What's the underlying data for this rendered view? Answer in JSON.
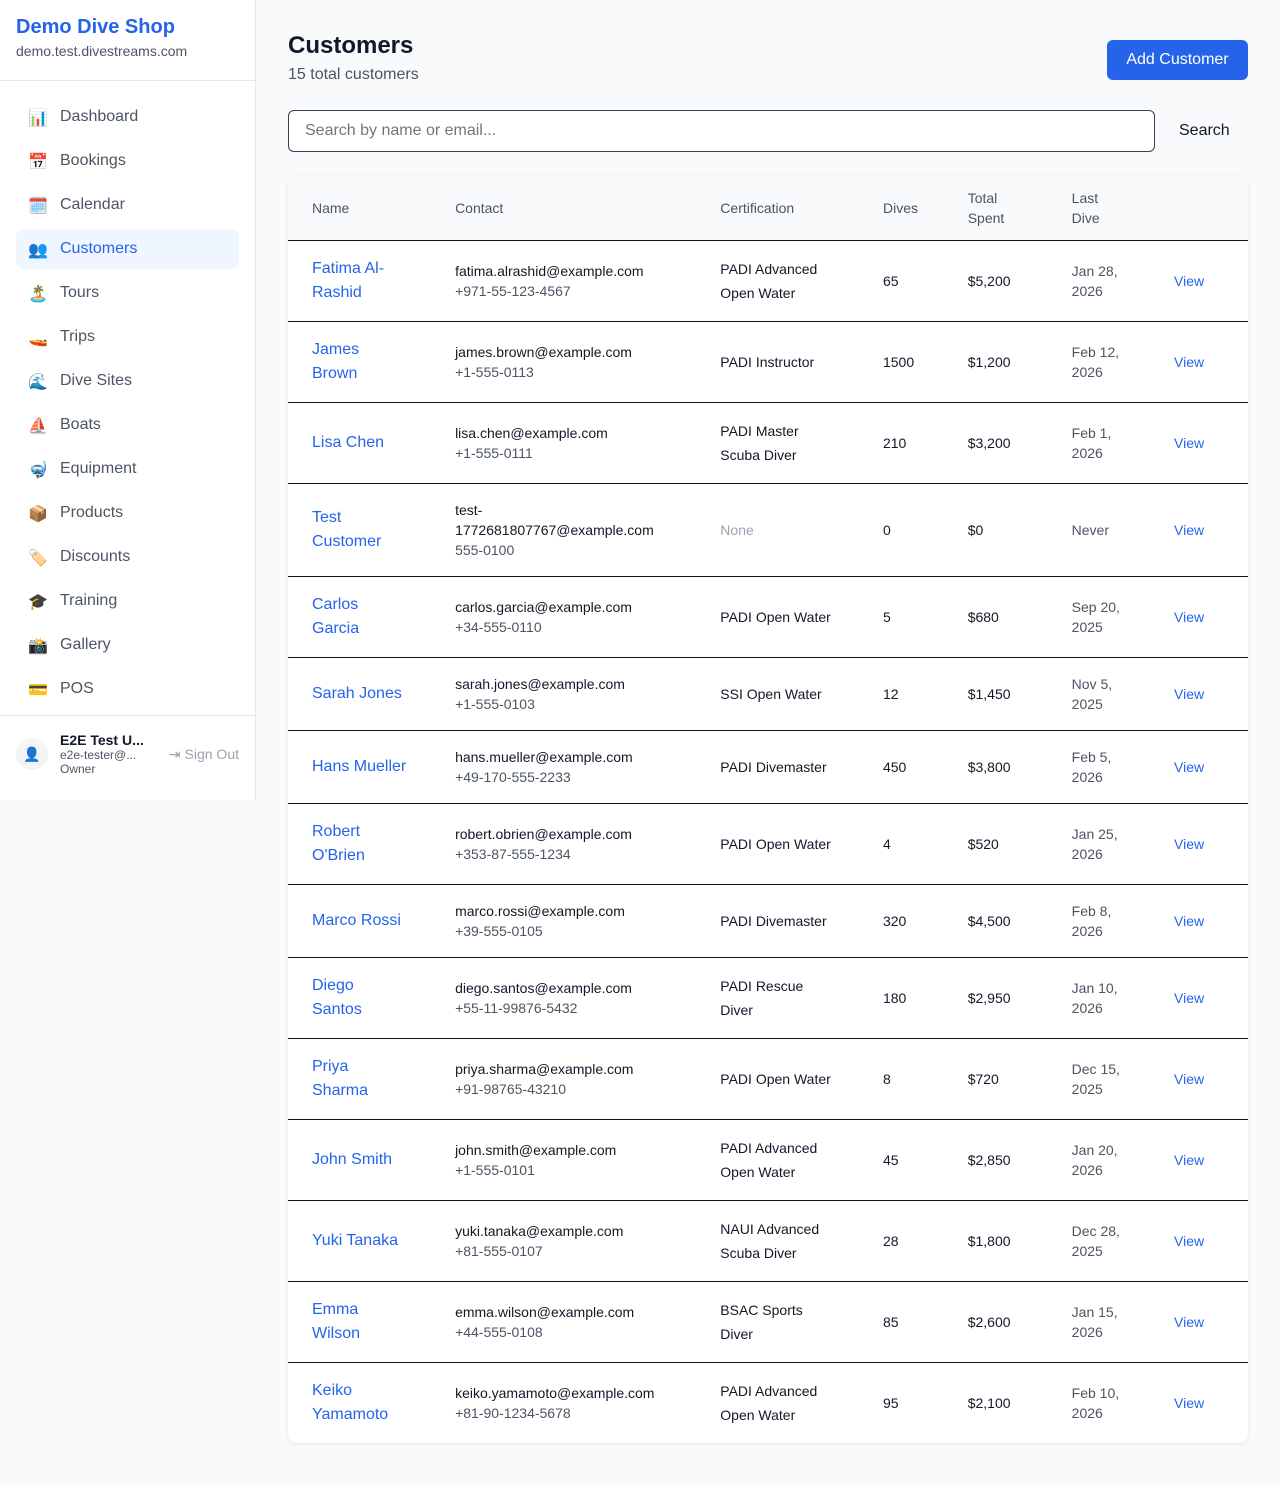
{
  "sidebar": {
    "brand": "Demo Dive Shop",
    "url": "demo.test.divestreams.com",
    "items": [
      {
        "label": "Dashboard",
        "icon": "📊"
      },
      {
        "label": "Bookings",
        "icon": "📅"
      },
      {
        "label": "Calendar",
        "icon": "🗓️"
      },
      {
        "label": "Customers",
        "icon": "👥",
        "active": true
      },
      {
        "label": "Tours",
        "icon": "🏝️"
      },
      {
        "label": "Trips",
        "icon": "🚤"
      },
      {
        "label": "Dive Sites",
        "icon": "🌊"
      },
      {
        "label": "Boats",
        "icon": "⛵"
      },
      {
        "label": "Equipment",
        "icon": "🤿"
      },
      {
        "label": "Products",
        "icon": "📦"
      },
      {
        "label": "Discounts",
        "icon": "🏷️"
      },
      {
        "label": "Training",
        "icon": "🎓"
      },
      {
        "label": "Gallery",
        "icon": "📸"
      },
      {
        "label": "POS",
        "icon": "💳"
      }
    ],
    "user": {
      "name": "E2E Test U...",
      "email": "e2e-tester@...",
      "role": "Owner",
      "sign_out": "Sign Out"
    }
  },
  "header": {
    "title": "Customers",
    "subtitle": "15 total customers",
    "add_label": "Add Customer"
  },
  "search": {
    "placeholder": "Search by name or email...",
    "button": "Search"
  },
  "table": {
    "headers": [
      "Name",
      "Contact",
      "Certification",
      "Dives",
      "Total Spent",
      "Last Dive",
      ""
    ],
    "view_label": "View",
    "rows": [
      [
        "Fatima Al-Rashid",
        "fatima.alrashid@example.com",
        "+971-55-123-4567",
        "PADI Advanced Open Water",
        "65",
        "$5,200",
        "Jan 28, 2026"
      ],
      [
        "James Brown",
        "james.brown@example.com",
        "+1-555-0113",
        "PADI Instructor",
        "1500",
        "$1,200",
        "Feb 12, 2026"
      ],
      [
        "Lisa Chen",
        "lisa.chen@example.com",
        "+1-555-0111",
        "PADI Master Scuba Diver",
        "210",
        "$3,200",
        "Feb 1, 2026"
      ],
      [
        "Test Customer",
        "test-1772681807767@example.com",
        "555-0100",
        "None",
        "0",
        "$0",
        "Never"
      ],
      [
        "Carlos Garcia",
        "carlos.garcia@example.com",
        "+34-555-0110",
        "PADI Open Water",
        "5",
        "$680",
        "Sep 20, 2025"
      ],
      [
        "Sarah Jones",
        "sarah.jones@example.com",
        "+1-555-0103",
        "SSI Open Water",
        "12",
        "$1,450",
        "Nov 5, 2025"
      ],
      [
        "Hans Mueller",
        "hans.mueller@example.com",
        "+49-170-555-2233",
        "PADI Divemaster",
        "450",
        "$3,800",
        "Feb 5, 2026"
      ],
      [
        "Robert O'Brien",
        "robert.obrien@example.com",
        "+353-87-555-1234",
        "PADI Open Water",
        "4",
        "$520",
        "Jan 25, 2026"
      ],
      [
        "Marco Rossi",
        "marco.rossi@example.com",
        "+39-555-0105",
        "PADI Divemaster",
        "320",
        "$4,500",
        "Feb 8, 2026"
      ],
      [
        "Diego Santos",
        "diego.santos@example.com",
        "+55-11-99876-5432",
        "PADI Rescue Diver",
        "180",
        "$2,950",
        "Jan 10, 2026"
      ],
      [
        "Priya Sharma",
        "priya.sharma@example.com",
        "+91-98765-43210",
        "PADI Open Water",
        "8",
        "$720",
        "Dec 15, 2025"
      ],
      [
        "John Smith",
        "john.smith@example.com",
        "+1-555-0101",
        "PADI Advanced Open Water",
        "45",
        "$2,850",
        "Jan 20, 2026"
      ],
      [
        "Yuki Tanaka",
        "yuki.tanaka@example.com",
        "+81-555-0107",
        "NAUI Advanced Scuba Diver",
        "28",
        "$1,800",
        "Dec 28, 2025"
      ],
      [
        "Emma Wilson",
        "emma.wilson@example.com",
        "+44-555-0108",
        "BSAC Sports Diver",
        "85",
        "$2,600",
        "Jan 15, 2026"
      ],
      [
        "Keiko Yamamoto",
        "keiko.yamamoto@example.com",
        "+81-90-1234-5678",
        "PADI Advanced Open Water",
        "95",
        "$2,100",
        "Feb 10, 2026"
      ]
    ]
  }
}
